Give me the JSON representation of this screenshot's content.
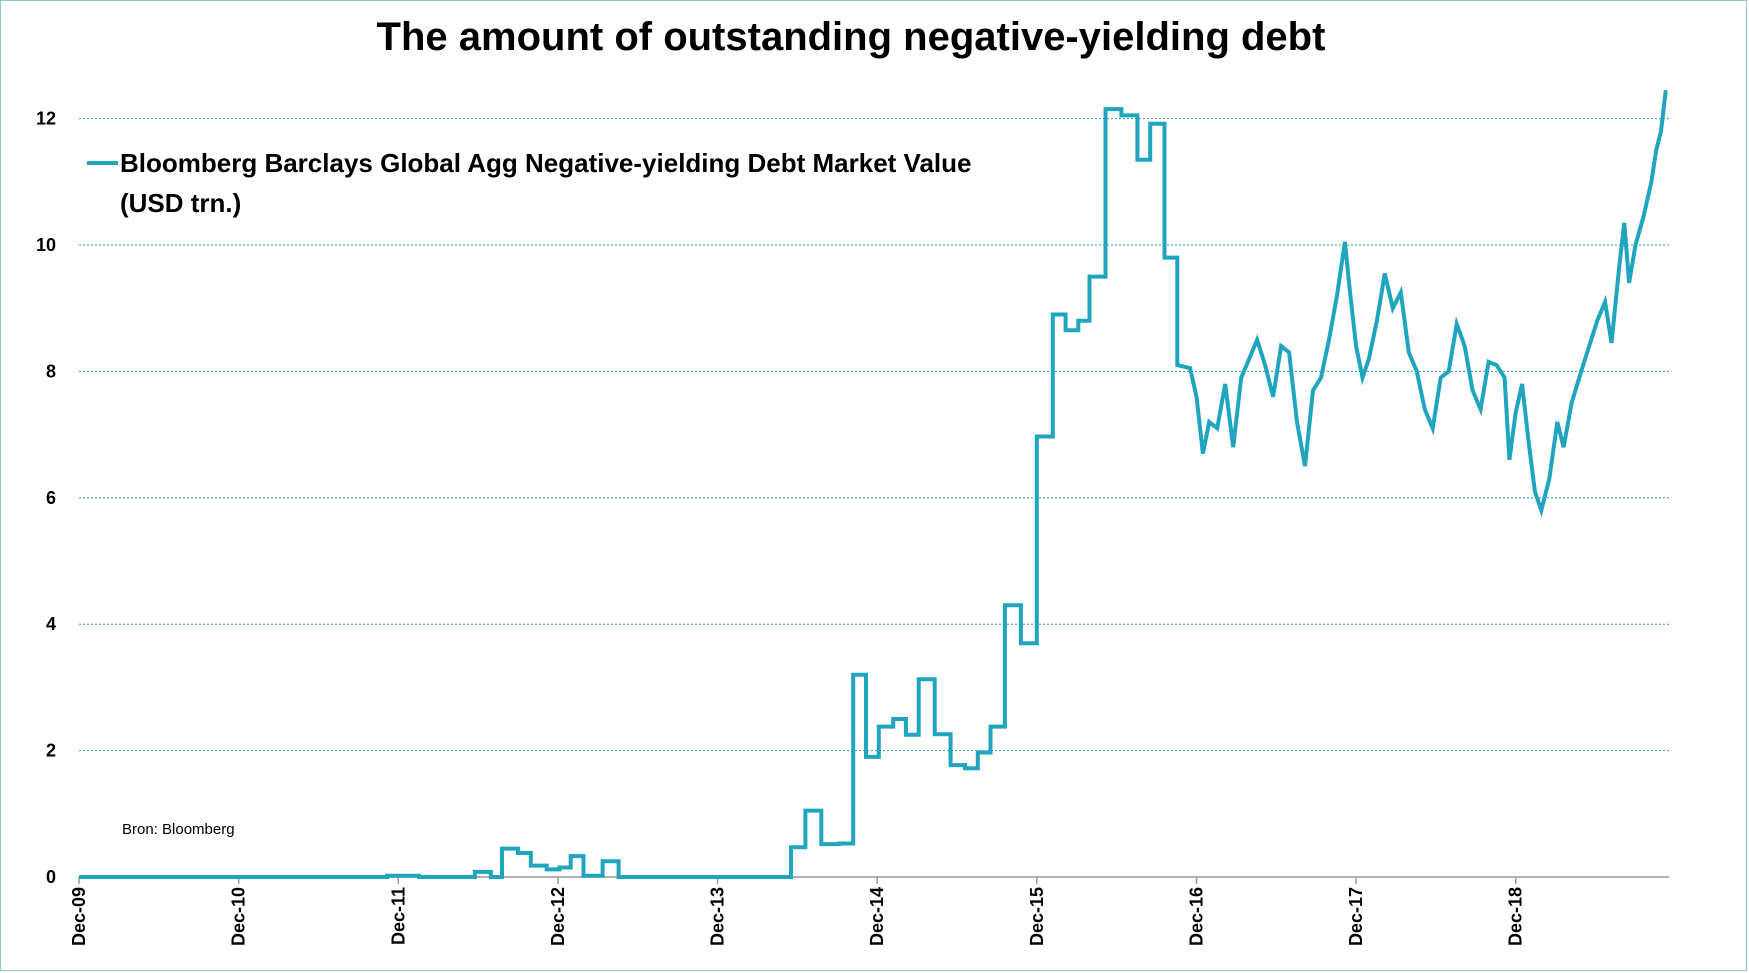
{
  "chart_data": {
    "type": "line",
    "title": "The amount of outstanding negative-yielding debt",
    "xlabel": "",
    "ylabel": "",
    "ylim": [
      0,
      12.5
    ],
    "yticks": [
      0,
      2,
      4,
      6,
      8,
      10,
      12
    ],
    "xlim": [
      2009.92,
      2019.5
    ],
    "xticks": [
      {
        "label": "Dec-09",
        "x": 2009.92
      },
      {
        "label": "Dec-10",
        "x": 2010.92
      },
      {
        "label": "Dec-11",
        "x": 2011.92
      },
      {
        "label": "Dec-12",
        "x": 2012.92
      },
      {
        "label": "Dec-13",
        "x": 2013.92
      },
      {
        "label": "Dec-14",
        "x": 2014.92
      },
      {
        "label": "Dec-15",
        "x": 2015.92
      },
      {
        "label": "Dec-16",
        "x": 2016.92
      },
      {
        "label": "Dec-17",
        "x": 2017.92
      },
      {
        "label": "Dec-18",
        "x": 2018.92
      }
    ],
    "grid": true,
    "legend_position": "top-left",
    "series": [
      {
        "name": "Bloomberg Barclays Global Agg Negative-yielding Debt Market Value",
        "name_line2": "(USD trn.)",
        "color": "#1fa5bd",
        "step": true,
        "points": [
          [
            2009.92,
            0
          ],
          [
            2011.5,
            0
          ],
          [
            2011.85,
            0.02
          ],
          [
            2012.05,
            0
          ],
          [
            2012.3,
            0
          ],
          [
            2012.4,
            0.08
          ],
          [
            2012.5,
            0
          ],
          [
            2012.57,
            0.45
          ],
          [
            2012.67,
            0.38
          ],
          [
            2012.75,
            0.18
          ],
          [
            2012.85,
            0.12
          ],
          [
            2012.93,
            0.15
          ],
          [
            2013.0,
            0.33
          ],
          [
            2013.08,
            0.02
          ],
          [
            2013.2,
            0.25
          ],
          [
            2013.3,
            0
          ],
          [
            2014.3,
            0
          ],
          [
            2014.38,
            0.47
          ],
          [
            2014.47,
            1.05
          ],
          [
            2014.57,
            0.52
          ],
          [
            2014.68,
            0.53
          ],
          [
            2014.77,
            3.2
          ],
          [
            2014.85,
            1.9
          ],
          [
            2014.93,
            2.38
          ],
          [
            2015.02,
            2.5
          ],
          [
            2015.1,
            2.25
          ],
          [
            2015.18,
            3.13
          ],
          [
            2015.28,
            2.26
          ],
          [
            2015.38,
            1.77
          ],
          [
            2015.47,
            1.72
          ],
          [
            2015.55,
            1.97
          ],
          [
            2015.63,
            2.38
          ],
          [
            2015.72,
            4.3
          ],
          [
            2015.82,
            3.7
          ],
          [
            2015.92,
            6.97
          ],
          [
            2016.02,
            8.9
          ],
          [
            2016.1,
            8.65
          ],
          [
            2016.18,
            8.8
          ],
          [
            2016.25,
            9.5
          ],
          [
            2016.35,
            12.15
          ],
          [
            2016.45,
            12.05
          ],
          [
            2016.55,
            11.35
          ],
          [
            2016.63,
            11.92
          ],
          [
            2016.72,
            9.8
          ],
          [
            2016.8,
            8.1
          ],
          [
            2016.88,
            8.05
          ],
          [
            2016.92,
            7.6
          ],
          [
            2016.96,
            6.7
          ],
          [
            2017.0,
            7.2
          ],
          [
            2017.05,
            7.1
          ],
          [
            2017.1,
            7.8
          ],
          [
            2017.15,
            6.8
          ],
          [
            2017.2,
            7.9
          ],
          [
            2017.25,
            8.2
          ],
          [
            2017.3,
            8.5
          ],
          [
            2017.35,
            8.1
          ],
          [
            2017.4,
            7.6
          ],
          [
            2017.45,
            8.4
          ],
          [
            2017.5,
            8.3
          ],
          [
            2017.55,
            7.2
          ],
          [
            2017.6,
            6.5
          ],
          [
            2017.65,
            7.7
          ],
          [
            2017.7,
            7.9
          ],
          [
            2017.75,
            8.5
          ],
          [
            2017.8,
            9.2
          ],
          [
            2017.85,
            10.05
          ],
          [
            2017.88,
            9.3
          ],
          [
            2017.92,
            8.4
          ],
          [
            2017.96,
            7.9
          ],
          [
            2018.0,
            8.2
          ],
          [
            2018.05,
            8.8
          ],
          [
            2018.1,
            9.55
          ],
          [
            2018.15,
            9.0
          ],
          [
            2018.2,
            9.25
          ],
          [
            2018.25,
            8.3
          ],
          [
            2018.3,
            8.0
          ],
          [
            2018.35,
            7.4
          ],
          [
            2018.4,
            7.1
          ],
          [
            2018.45,
            7.9
          ],
          [
            2018.5,
            8.0
          ],
          [
            2018.55,
            8.75
          ],
          [
            2018.6,
            8.4
          ],
          [
            2018.65,
            7.7
          ],
          [
            2018.7,
            7.4
          ],
          [
            2018.75,
            8.15
          ],
          [
            2018.8,
            8.1
          ],
          [
            2018.85,
            7.9
          ],
          [
            2018.88,
            6.6
          ],
          [
            2018.92,
            7.35
          ],
          [
            2018.96,
            7.8
          ],
          [
            2019.0,
            6.9
          ],
          [
            2019.04,
            6.1
          ],
          [
            2019.08,
            5.8
          ],
          [
            2019.13,
            6.3
          ],
          [
            2019.18,
            7.2
          ],
          [
            2019.22,
            6.8
          ],
          [
            2019.27,
            7.5
          ],
          [
            2019.33,
            8.0
          ],
          [
            2019.38,
            8.4
          ],
          [
            2019.43,
            8.8
          ],
          [
            2019.48,
            9.1
          ],
          [
            2019.52,
            8.45
          ],
          [
            2019.57,
            9.7
          ],
          [
            2019.6,
            10.35
          ],
          [
            2019.63,
            9.4
          ],
          [
            2019.67,
            10.0
          ],
          [
            2019.72,
            10.45
          ],
          [
            2019.77,
            11.0
          ],
          [
            2019.8,
            11.5
          ],
          [
            2019.83,
            11.8
          ],
          [
            2019.86,
            12.45
          ]
        ]
      }
    ],
    "source_note": "Bron: Bloomberg"
  }
}
